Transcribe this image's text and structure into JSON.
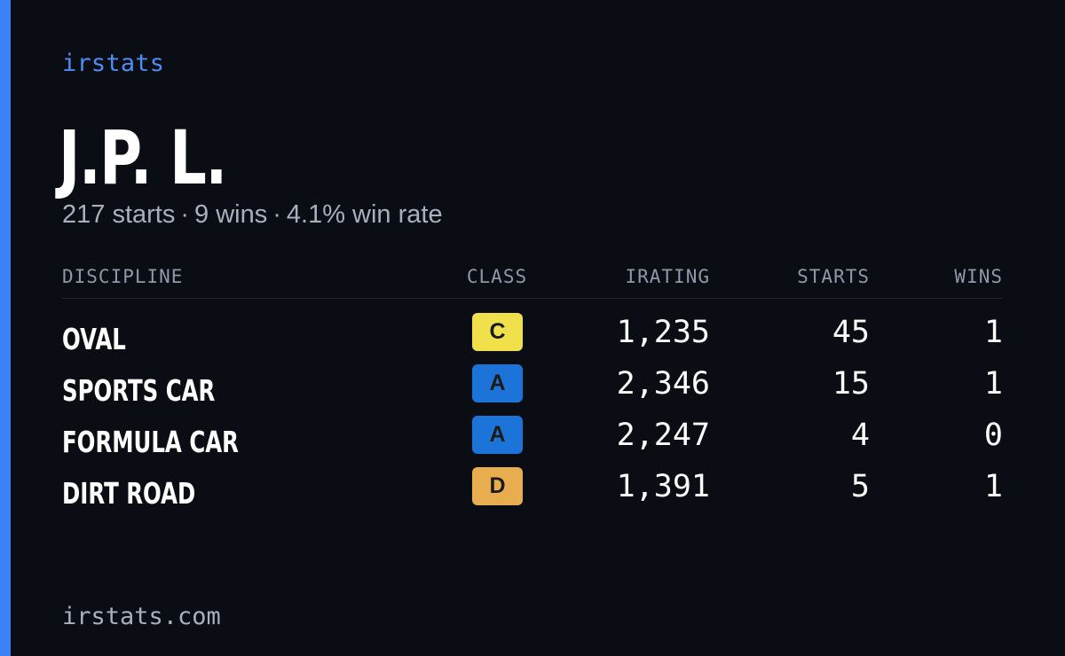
{
  "brand": "irstats",
  "driver": {
    "name": "J.P. L.",
    "summary": {
      "starts": "217 starts",
      "wins": "9 wins",
      "win_rate": "4.1% win rate",
      "separator": "·"
    }
  },
  "table": {
    "headers": {
      "discipline": "DISCIPLINE",
      "class": "CLASS",
      "irating": "IRATING",
      "starts": "STARTS",
      "wins": "WINS"
    },
    "rows": [
      {
        "discipline": "OVAL",
        "class": "C",
        "class_color": "#f0e04b",
        "irating": "1,235",
        "starts": "45",
        "wins": "1"
      },
      {
        "discipline": "SPORTS CAR",
        "class": "A",
        "class_color": "#1d74d8",
        "irating": "2,346",
        "starts": "15",
        "wins": "1"
      },
      {
        "discipline": "FORMULA CAR",
        "class": "A",
        "class_color": "#1d74d8",
        "irating": "2,247",
        "starts": "4",
        "wins": "0"
      },
      {
        "discipline": "DIRT ROAD",
        "class": "D",
        "class_color": "#e8ad4e",
        "irating": "1,391",
        "starts": "5",
        "wins": "1"
      }
    ]
  },
  "footer": {
    "url": "irstats.com"
  },
  "colors": {
    "background": "#0b0d14",
    "accent": "#3b82f6",
    "muted_text": "#a7b0bf"
  }
}
